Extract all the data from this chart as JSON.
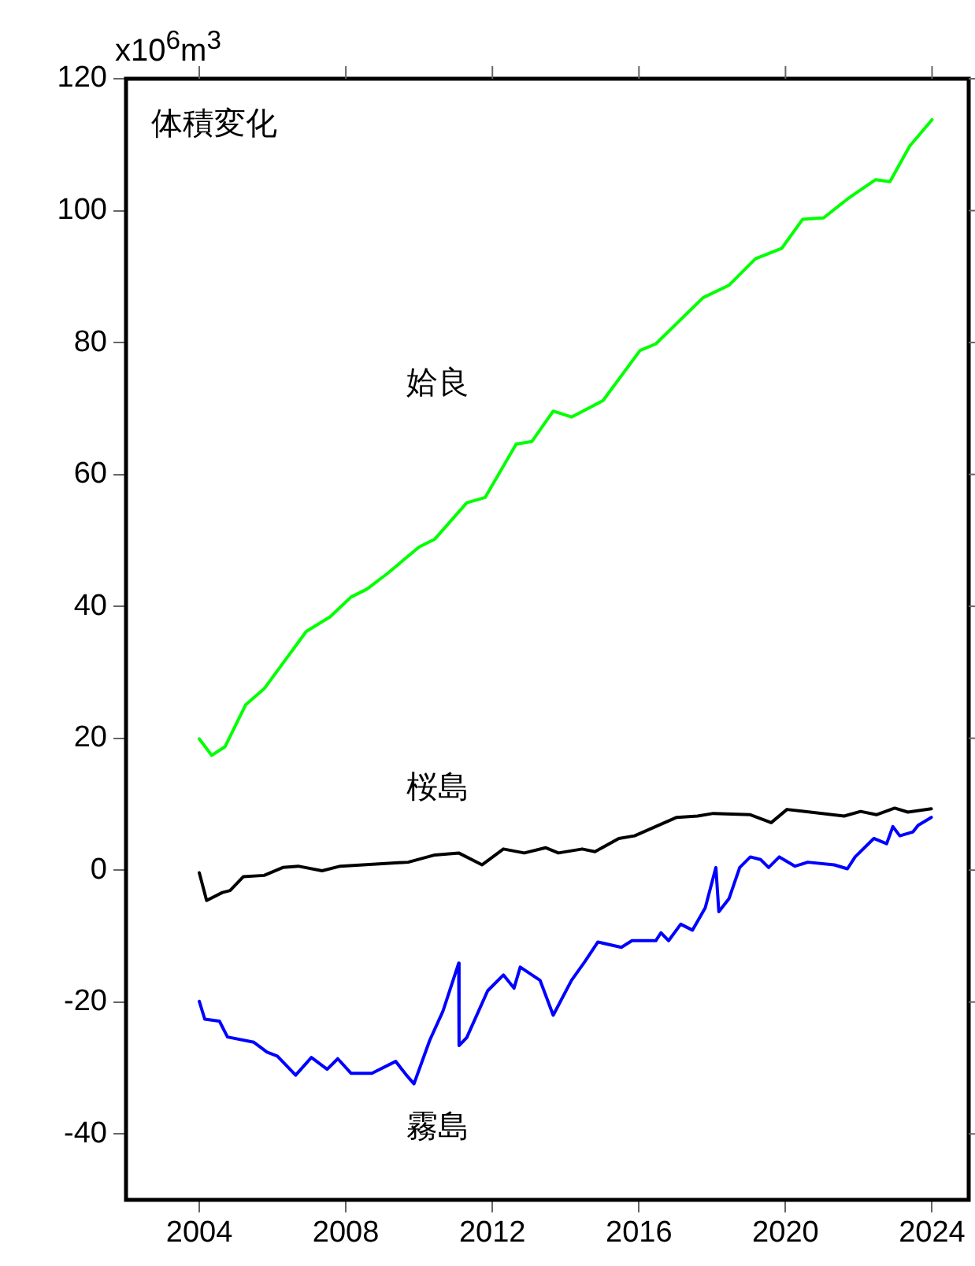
{
  "chart_data": {
    "type": "line",
    "title": "体積変化",
    "ylabel": "x10$^{6}$m$^{3}$",
    "xlim": [
      2002,
      2025
    ],
    "xticks": [
      2004,
      2008,
      2012,
      2016,
      2020,
      2024
    ],
    "ylim": [
      -50,
      120
    ],
    "yticks": [
      -40,
      -20,
      0,
      20,
      40,
      60,
      80,
      100,
      120
    ],
    "grid": false,
    "legend": false,
    "marker": "none",
    "line_style": "solid",
    "series": [
      {
        "name": "姶良",
        "color": "#00ff00",
        "x": [
          2004.0,
          2004.34,
          2004.7,
          2005.27,
          2005.77,
          2006.92,
          2007.57,
          2008.14,
          2008.57,
          2009.14,
          2010.0,
          2010.43,
          2011.3,
          2011.8,
          2012.65,
          2013.08,
          2013.66,
          2014.16,
          2015.02,
          2016.03,
          2016.46,
          2017.75,
          2018.46,
          2019.18,
          2019.9,
          2020.47,
          2021.04,
          2021.7,
          2022.46,
          2022.85,
          2023.39,
          2024.0
        ],
        "values": [
          19.9,
          17.4,
          18.7,
          25.1,
          27.5,
          36.2,
          38.4,
          41.4,
          42.6,
          45.0,
          49.0,
          50.2,
          55.7,
          56.5,
          64.6,
          65.0,
          69.6,
          68.7,
          71.2,
          78.8,
          79.8,
          86.8,
          88.7,
          92.7,
          94.3,
          98.7,
          98.9,
          101.8,
          104.7,
          104.4,
          109.8,
          113.8
        ]
      },
      {
        "name": "桜島",
        "color": "#000000",
        "x": [
          2004.0,
          2004.2,
          2004.63,
          2004.84,
          2005.2,
          2005.77,
          2006.28,
          2006.7,
          2007.35,
          2007.85,
          2009.7,
          2010.43,
          2011.08,
          2011.72,
          2012.3,
          2012.87,
          2013.45,
          2013.8,
          2014.45,
          2014.8,
          2015.45,
          2015.88,
          2017.03,
          2017.6,
          2018.03,
          2019.04,
          2019.61,
          2020.04,
          2021.6,
          2022.05,
          2022.48,
          2022.98,
          2023.34,
          2023.98
        ],
        "values": [
          -0.4,
          -4.6,
          -3.4,
          -3.1,
          -1.0,
          -0.8,
          0.4,
          0.6,
          -0.1,
          0.6,
          1.2,
          2.3,
          2.6,
          0.8,
          3.2,
          2.6,
          3.4,
          2.6,
          3.2,
          2.8,
          4.8,
          5.2,
          8.0,
          8.2,
          8.6,
          8.4,
          7.2,
          9.2,
          8.2,
          8.9,
          8.4,
          9.4,
          8.8,
          9.3
        ]
      },
      {
        "name": "霧島",
        "color": "#0000ff",
        "x": [
          2004.0,
          2004.15,
          2004.55,
          2004.77,
          2005.49,
          2005.85,
          2006.13,
          2006.63,
          2007.06,
          2007.49,
          2007.78,
          2008.14,
          2008.71,
          2009.36,
          2009.64,
          2009.86,
          2010.29,
          2010.65,
          2011.08,
          2011.09,
          2011.3,
          2011.87,
          2012.3,
          2012.59,
          2012.76,
          2013.3,
          2013.66,
          2014.16,
          2014.52,
          2014.88,
          2015.52,
          2015.81,
          2016.46,
          2016.6,
          2016.81,
          2017.14,
          2017.46,
          2017.81,
          2018.1,
          2018.18,
          2018.46,
          2018.75,
          2019.04,
          2019.32,
          2019.54,
          2019.83,
          2020.26,
          2020.61,
          2021.33,
          2021.69,
          2021.9,
          2022.41,
          2022.76,
          2022.93,
          2023.12,
          2023.48,
          2023.62,
          2023.98
        ],
        "values": [
          -19.9,
          -22.6,
          -22.9,
          -25.3,
          -26.1,
          -27.6,
          -28.2,
          -31.1,
          -28.4,
          -30.2,
          -28.6,
          -30.8,
          -30.8,
          -29.0,
          -31.0,
          -32.4,
          -25.8,
          -21.4,
          -14.1,
          -26.6,
          -25.4,
          -18.3,
          -15.9,
          -17.9,
          -14.7,
          -16.7,
          -22.0,
          -16.7,
          -13.9,
          -10.9,
          -11.7,
          -10.7,
          -10.7,
          -9.5,
          -10.7,
          -8.2,
          -9.1,
          -5.7,
          0.4,
          -6.3,
          -4.3,
          0.4,
          2.0,
          1.6,
          0.4,
          2.0,
          0.6,
          1.2,
          0.8,
          0.2,
          2.0,
          4.8,
          4.0,
          6.6,
          5.2,
          5.8,
          6.8,
          8.0
        ]
      }
    ]
  }
}
